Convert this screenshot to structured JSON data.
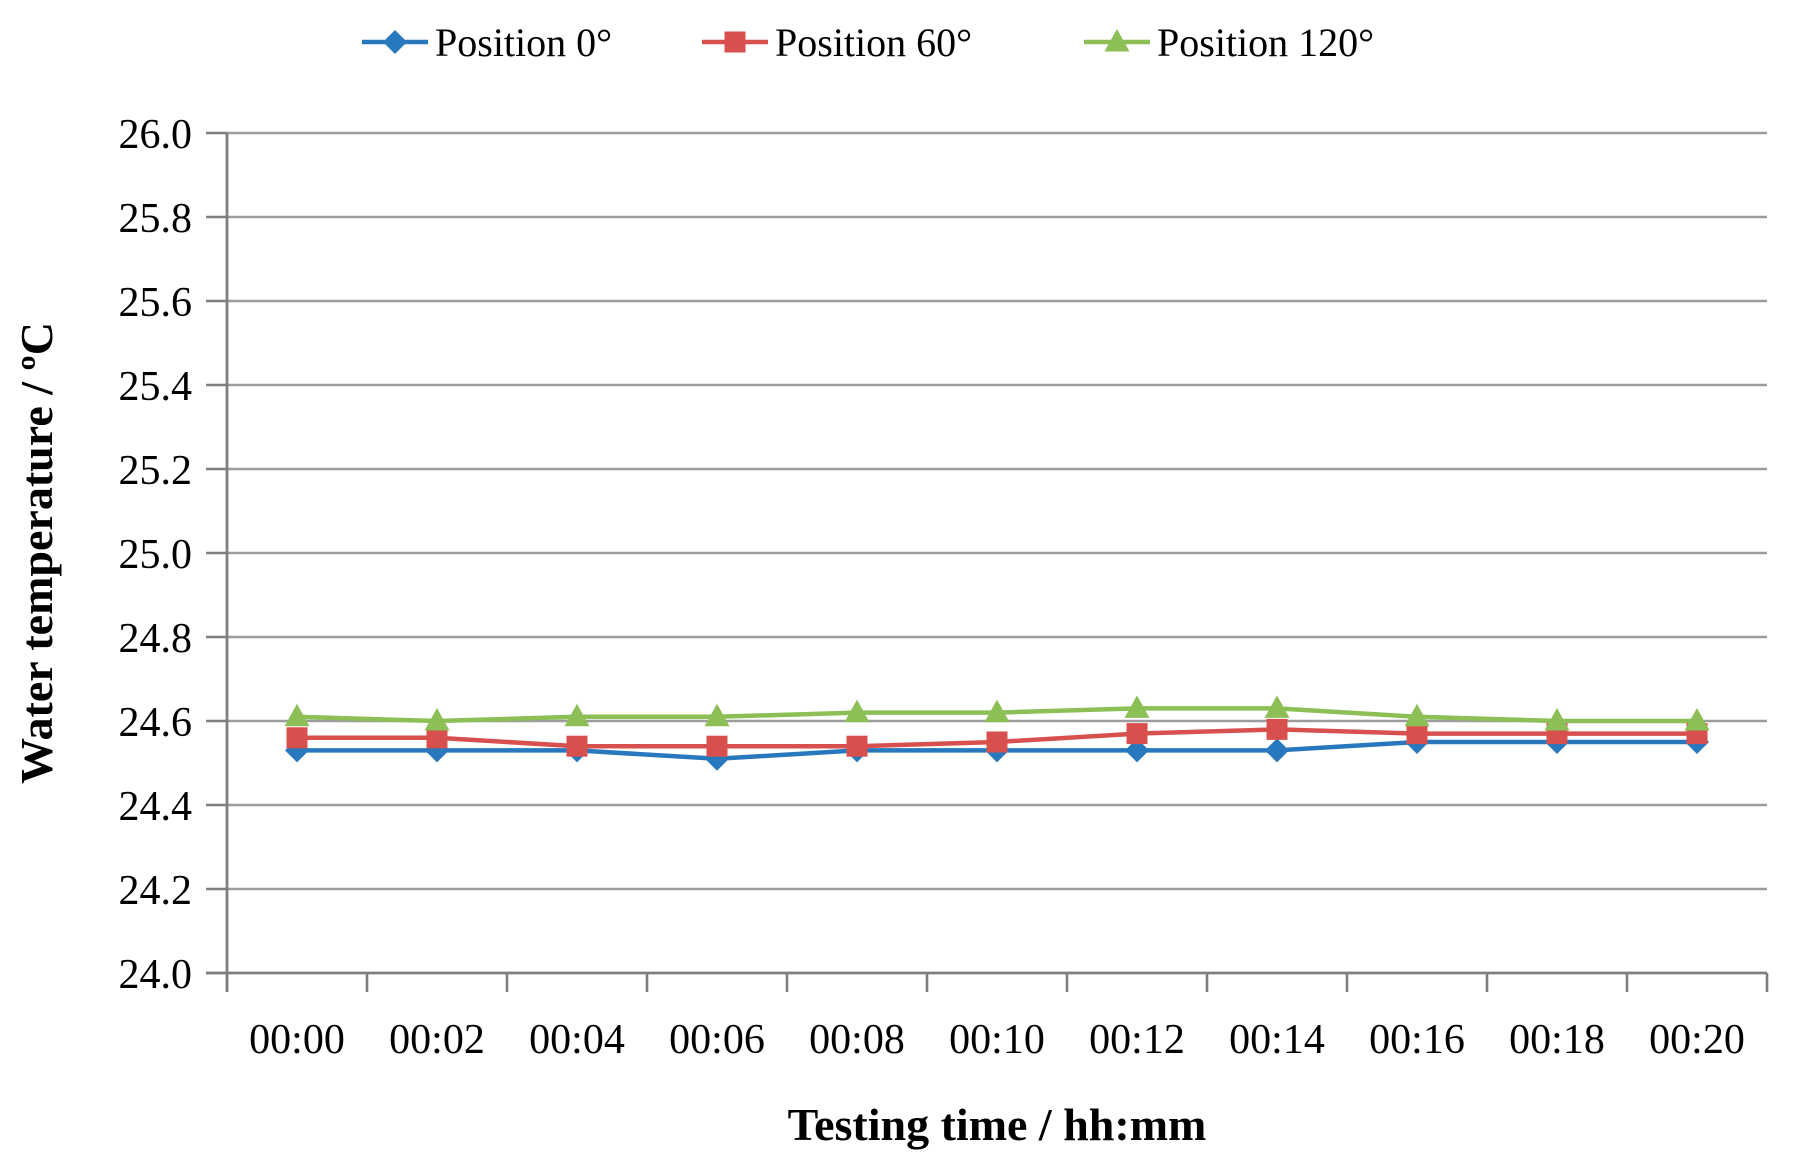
{
  "chart_data": {
    "type": "line",
    "title": "",
    "xlabel": "Testing time / hh:mm",
    "ylabel": "Water temperature / ºC",
    "x_categories": [
      "00:00",
      "00:02",
      "00:04",
      "00:06",
      "00:08",
      "00:10",
      "00:12",
      "00:14",
      "00:16",
      "00:18",
      "00:20"
    ],
    "ylim": [
      24.0,
      26.0
    ],
    "ytick_step": 0.2,
    "ytick_labels": [
      "24.0",
      "24.2",
      "24.4",
      "24.6",
      "24.8",
      "25.0",
      "25.2",
      "25.4",
      "25.6",
      "25.8",
      "26.0"
    ],
    "grid": true,
    "legend_position": "top",
    "series": [
      {
        "name": "Position 0°",
        "marker": "diamond",
        "color": "#2878BE",
        "values": [
          24.53,
          24.53,
          24.53,
          24.51,
          24.53,
          24.53,
          24.53,
          24.53,
          24.55,
          24.55,
          24.55
        ]
      },
      {
        "name": "Position 60°",
        "marker": "square",
        "color": "#D8504D",
        "values": [
          24.56,
          24.56,
          24.54,
          24.54,
          24.54,
          24.55,
          24.57,
          24.58,
          24.57,
          24.57,
          24.57
        ]
      },
      {
        "name": "Position 120°",
        "marker": "triangle",
        "color": "#8CBF56",
        "values": [
          24.61,
          24.6,
          24.61,
          24.61,
          24.62,
          24.62,
          24.63,
          24.63,
          24.61,
          24.6,
          24.6
        ]
      }
    ],
    "colors": {
      "axis": "#7F7F7F",
      "grid": "#9C9C9C",
      "text": "#000000",
      "background": "#FFFFFF"
    }
  }
}
